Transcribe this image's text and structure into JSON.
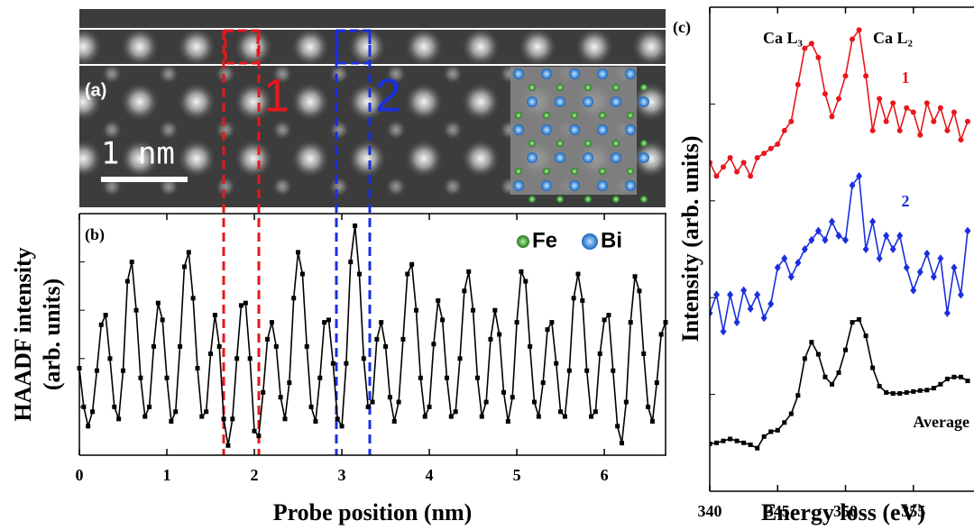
{
  "image_panel": {
    "label": "(a)",
    "scale_bar": "1 nm",
    "markers": [
      "1",
      "2"
    ],
    "legend": [
      "Fe",
      "Bi"
    ]
  },
  "chart_data": [
    {
      "type": "line",
      "panel_label": "(b)",
      "x_label": "Probe position (nm)",
      "y_label": [
        "HAADF intensity",
        "(arb. units)"
      ],
      "color": "#000000",
      "marker": "square",
      "xlim": [
        0,
        6.7
      ],
      "xticks": [
        0,
        1,
        2,
        3,
        4,
        5,
        6
      ],
      "ylim": [
        0,
        10
      ],
      "x": [
        0,
        0.05,
        0.1,
        0.15,
        0.2,
        0.25,
        0.3,
        0.35,
        0.4,
        0.45,
        0.5,
        0.55,
        0.6,
        0.65,
        0.7,
        0.75,
        0.8,
        0.85,
        0.9,
        0.95,
        1,
        1.05,
        1.1,
        1.15,
        1.2,
        1.25,
        1.3,
        1.35,
        1.4,
        1.45,
        1.5,
        1.55,
        1.6,
        1.65,
        1.7,
        1.75,
        1.8,
        1.85,
        1.9,
        1.95,
        2,
        2.05,
        2.1,
        2.15,
        2.2,
        2.25,
        2.3,
        2.35,
        2.4,
        2.45,
        2.5,
        2.55,
        2.6,
        2.65,
        2.7,
        2.75,
        2.8,
        2.85,
        2.9,
        2.95,
        3,
        3.05,
        3.1,
        3.15,
        3.2,
        3.25,
        3.3,
        3.35,
        3.4,
        3.45,
        3.5,
        3.55,
        3.6,
        3.65,
        3.7,
        3.75,
        3.8,
        3.85,
        3.9,
        3.95,
        4,
        4.05,
        4.1,
        4.15,
        4.2,
        4.25,
        4.3,
        4.35,
        4.4,
        4.45,
        4.5,
        4.55,
        4.6,
        4.65,
        4.7,
        4.75,
        4.8,
        4.85,
        4.9,
        4.95,
        5,
        5.05,
        5.1,
        5.15,
        5.2,
        5.25,
        5.3,
        5.35,
        5.4,
        5.45,
        5.5,
        5.55,
        5.6,
        5.65,
        5.7,
        5.75,
        5.8,
        5.85,
        5.9,
        5.95,
        6,
        6.05,
        6.1,
        6.15,
        6.2,
        6.25,
        6.3,
        6.35,
        6.4,
        6.45,
        6.5,
        6.55,
        6.6,
        6.65,
        6.7
      ],
      "values": [
        3.6,
        2.0,
        1.2,
        1.8,
        3.5,
        5.4,
        5.8,
        4.0,
        2.0,
        1.5,
        3.5,
        7.2,
        8.0,
        6.0,
        3.2,
        1.6,
        2.0,
        4.5,
        6.3,
        5.6,
        3.2,
        1.4,
        1.8,
        4.5,
        7.8,
        8.4,
        6.5,
        3.6,
        1.6,
        1.8,
        4.2,
        5.8,
        4.5,
        1.5,
        0.4,
        1.5,
        4.0,
        6.2,
        6.3,
        4.0,
        1.0,
        0.8,
        2.6,
        4.8,
        5.5,
        4.5,
        2.4,
        1.5,
        3.0,
        6.5,
        8.4,
        7.5,
        4.5,
        2.0,
        1.4,
        3.2,
        5.5,
        5.6,
        3.8,
        1.5,
        1.2,
        3.8,
        8.0,
        9.5,
        7.5,
        4.0,
        2.0,
        2.2,
        4.8,
        5.5,
        4.5,
        2.4,
        1.4,
        2.2,
        4.8,
        7.5,
        7.9,
        6.0,
        3.2,
        1.6,
        2.0,
        4.6,
        6.4,
        5.6,
        3.2,
        1.6,
        1.8,
        4.0,
        6.8,
        7.6,
        6.0,
        3.2,
        1.6,
        2.2,
        4.8,
        6.0,
        5.0,
        2.6,
        1.4,
        2.4,
        5.5,
        7.6,
        7.2,
        4.5,
        2.2,
        1.6,
        3.0,
        5.2,
        5.5,
        3.8,
        1.8,
        1.6,
        3.5,
        6.5,
        7.5,
        6.4,
        3.5,
        1.6,
        1.8,
        4.2,
        5.6,
        5.8,
        3.5,
        1.2,
        0.5,
        2.2,
        5.5,
        7.4,
        6.8,
        4.2,
        2.0,
        1.4,
        3.0,
        5.0,
        5.5
      ]
    },
    {
      "type": "line",
      "panel_label": "(c)",
      "x_label": "Energy loss (eV)",
      "y_label": "Intensity (arb. units)",
      "annotations": [
        "Ca L₃",
        "Ca L₂"
      ],
      "xlim": [
        340,
        359.4
      ],
      "xticks": [
        340,
        345,
        350,
        355
      ],
      "ylim": [
        0,
        10
      ],
      "x": [
        340,
        340.5,
        341,
        341.5,
        342,
        342.5,
        343,
        343.5,
        344,
        344.5,
        345,
        345.5,
        346,
        346.5,
        347,
        347.5,
        348,
        348.5,
        349,
        349.5,
        350,
        350.5,
        351,
        351.5,
        352,
        352.5,
        353,
        353.5,
        354,
        354.5,
        355,
        355.5,
        356,
        356.5,
        357,
        357.5,
        358,
        358.5,
        359
      ],
      "series": [
        {
          "name": "1",
          "color": "#e8161b",
          "marker": "circle",
          "values": [
            6.79,
            6.51,
            6.7,
            6.89,
            6.6,
            6.79,
            6.51,
            6.89,
            6.98,
            7.08,
            7.17,
            7.45,
            7.64,
            8.4,
            9.15,
            9.25,
            8.96,
            8.21,
            7.74,
            8.11,
            8.58,
            9.34,
            9.53,
            8.58,
            7.45,
            8.11,
            7.64,
            8.02,
            7.45,
            7.92,
            7.83,
            7.36,
            8.02,
            7.64,
            7.92,
            7.45,
            7.83,
            7.26,
            7.64
          ]
        },
        {
          "name": "2",
          "color": "#1a2fe0",
          "marker": "diamond",
          "values": [
            3.68,
            4.06,
            3.3,
            4.06,
            3.49,
            4.15,
            3.77,
            4.06,
            3.58,
            3.87,
            4.62,
            4.81,
            4.43,
            4.72,
            5.0,
            5.19,
            5.38,
            5.19,
            5.57,
            5.28,
            5.19,
            6.32,
            6.51,
            5.0,
            5.57,
            4.81,
            5.28,
            5.0,
            5.28,
            4.62,
            4.15,
            4.53,
            4.91,
            4.43,
            4.81,
            3.68,
            4.62,
            4.06,
            5.38
          ]
        },
        {
          "name": "Average",
          "color": "#000000",
          "marker": "square",
          "values": [
            0.98,
            1.0,
            1.04,
            1.08,
            1.04,
            1.0,
            0.96,
            0.89,
            1.13,
            1.23,
            1.26,
            1.42,
            1.6,
            1.98,
            2.74,
            3.08,
            2.83,
            2.36,
            2.21,
            2.45,
            2.92,
            3.49,
            3.55,
            3.21,
            2.55,
            2.17,
            2.04,
            2.02,
            2.02,
            2.04,
            2.06,
            2.08,
            2.09,
            2.13,
            2.21,
            2.32,
            2.36,
            2.36,
            2.28
          ]
        }
      ]
    }
  ]
}
